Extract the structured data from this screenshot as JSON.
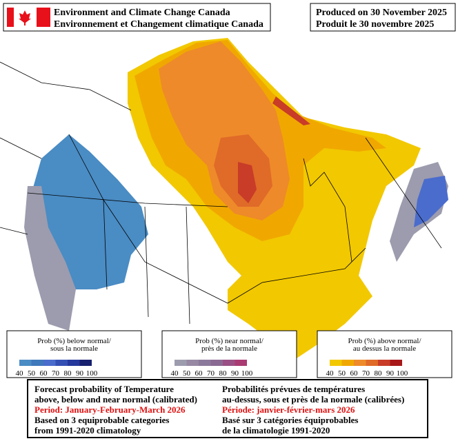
{
  "header": {
    "agency": [
      "Environment and Climate Change Canada",
      "Environnement et Changement climatique Canada"
    ],
    "produced": [
      "Produced on 30 November 2025",
      "Produit le 30 novembre 2025"
    ]
  },
  "legends": [
    {
      "title": [
        "Prob (%) below normal/",
        "sous la normale"
      ],
      "ticks": [
        40,
        50,
        60,
        70,
        80,
        90,
        100
      ],
      "colors": [
        "#4a8cc4",
        "#3f78bb",
        "#4a6ccc",
        "#3550b4",
        "#25389c",
        "#16206e"
      ]
    },
    {
      "title": [
        "Prob (%) near normal/",
        "près de la normale"
      ],
      "ticks": [
        40,
        50,
        60,
        70,
        80,
        90,
        100
      ],
      "colors": [
        "#9c9cae",
        "#9788a4",
        "#8c7a9c",
        "#8a6a92",
        "#9a5084",
        "#aa3a72"
      ]
    },
    {
      "title": [
        "Prob (%) above normal/",
        "au dessus la normale"
      ],
      "ticks": [
        40,
        50,
        60,
        70,
        80,
        90,
        100
      ],
      "colors": [
        "#f2c800",
        "#f0a800",
        "#ee8a2a",
        "#e06a28",
        "#c83c28",
        "#a81818"
      ]
    }
  ],
  "footer": {
    "left": [
      "Forecast probability of Temperature",
      "above, below and near normal (calibrated)",
      "Period: January-February-March 2026",
      "Based on 3 equiprobable categories",
      " from 1991-2020 climatology"
    ],
    "right": [
      "Probabilités prévues de températures",
      "au-dessus, sous et près de la normale (calibrées)",
      "Période: janvier-février-mars 2026",
      "Basé sur 3 catégories équiprobables",
      "de la climatologie 1991-2020"
    ]
  }
}
